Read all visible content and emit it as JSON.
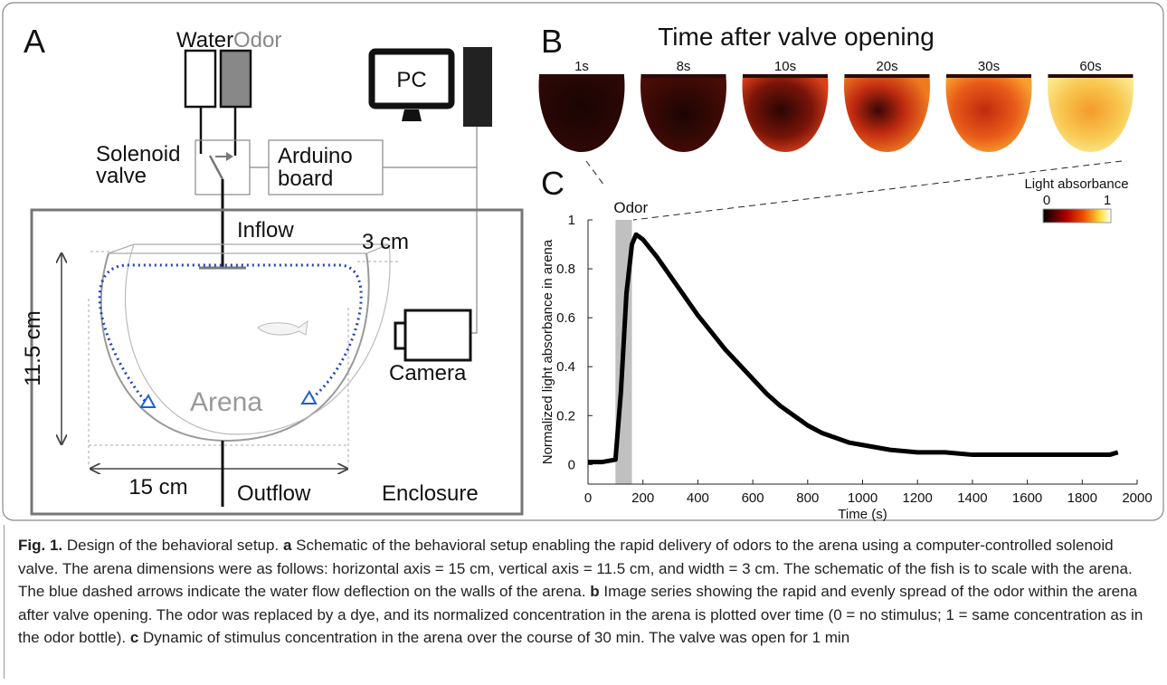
{
  "panel_a": {
    "letter": "A",
    "water": "Water",
    "odor": "Odor",
    "pc": "PC",
    "valve": [
      "Solenoid",
      "valve"
    ],
    "arduino": [
      "Arduino",
      "board"
    ],
    "inflow": "Inflow",
    "width": "3 cm",
    "height": "11.5 cm",
    "arena": "Arena",
    "camera": "Camera",
    "length": "15 cm",
    "outflow": "Outflow",
    "enclosure": "Enclosure"
  },
  "panel_b": {
    "letter": "B",
    "title": "Time after valve opening",
    "frames": [
      "1s",
      "8s",
      "10s",
      "20s",
      "30s",
      "60s"
    ]
  },
  "panel_c": {
    "letter": "C"
  },
  "chart_data": {
    "type": "line",
    "xlabel": "Time (s)",
    "ylabel": "Normalized light absorbance in arena",
    "x": [
      0,
      50,
      100,
      120,
      140,
      160,
      175,
      200,
      250,
      300,
      350,
      400,
      450,
      500,
      550,
      600,
      650,
      700,
      750,
      800,
      850,
      900,
      950,
      1000,
      1100,
      1200,
      1300,
      1400,
      1500,
      1600,
      1700,
      1800,
      1900,
      1930
    ],
    "values": [
      0.01,
      0.01,
      0.02,
      0.3,
      0.7,
      0.9,
      0.94,
      0.92,
      0.85,
      0.77,
      0.69,
      0.61,
      0.54,
      0.47,
      0.41,
      0.35,
      0.29,
      0.24,
      0.2,
      0.16,
      0.13,
      0.11,
      0.09,
      0.08,
      0.06,
      0.05,
      0.05,
      0.04,
      0.04,
      0.04,
      0.04,
      0.04,
      0.04,
      0.05
    ],
    "color": "#000000",
    "xlim": [
      0,
      2000
    ],
    "ylim": [
      -0.08,
      1
    ],
    "xticks": [
      0,
      200,
      400,
      600,
      800,
      1000,
      1200,
      1400,
      1600,
      1800,
      2000
    ],
    "yticks": [
      0,
      0.2,
      0.4,
      0.6,
      0.8,
      1
    ],
    "shade": {
      "label": "Odor",
      "range": [
        100,
        160
      ],
      "color": "#c0c0c0"
    },
    "colorbar": {
      "label": "Light absorbance",
      "ticks": [
        0,
        1
      ]
    }
  },
  "caption": {
    "label": "Fig. 1.",
    "intro": "Design of the behavioral setup.",
    "items": [
      {
        "letter": "a",
        "text": "Schematic of the behavioral setup enabling the rapid delivery of odors to the arena using a computer-controlled solenoid valve. The arena dimensions were as follows: horizontal axis = 15 cm, vertical axis = 11.5 cm, and width = 3 cm. The schematic of the fish is to scale with the arena. The blue dashed arrows indicate the water flow deflection on the walls of the arena."
      },
      {
        "letter": "b",
        "text": "Image series showing the rapid and evenly spread of the odor within the arena after valve opening. The odor was replaced by a dye, and its normalized concentration in the arena is plotted over time (0 = no stimulus; 1 = same concentration as in the odor bottle)."
      },
      {
        "letter": "c",
        "text": "Dynamic of stimulus concentration in the arena over the course of 30 min. The valve was open for 1 min"
      }
    ]
  }
}
